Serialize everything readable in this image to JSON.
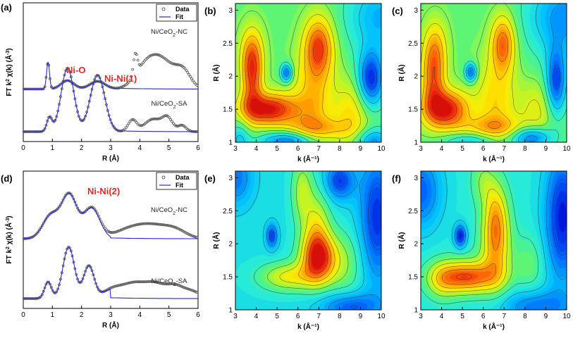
{
  "figure": {
    "panels": [
      {
        "id": "a",
        "label": "(a)",
        "type": "line"
      },
      {
        "id": "b",
        "label": "(b)",
        "type": "heatmap"
      },
      {
        "id": "c",
        "label": "(c)",
        "type": "heatmap"
      },
      {
        "id": "d",
        "label": "(d)",
        "type": "line"
      },
      {
        "id": "e",
        "label": "(e)",
        "type": "heatmap"
      },
      {
        "id": "f",
        "label": "(f)",
        "type": "heatmap"
      }
    ]
  },
  "chart_data": [
    {
      "panel": "a",
      "type": "line",
      "xlabel": "R (Å)",
      "ylabel_parts": [
        "FT k",
        "2",
        " χ(k) (Å",
        "-3",
        ")"
      ],
      "xlim": [
        0,
        6
      ],
      "xticks": [
        0,
        1,
        2,
        3,
        4,
        5,
        6
      ],
      "legend": {
        "data_label": "Data",
        "fit_label": "Fit",
        "data_color": "#555555",
        "fit_color": "#2a2ad0"
      },
      "annotations": [
        "Ni-O",
        "Ni-Ni(1)"
      ],
      "annotation_color": "#e8262a",
      "series": [
        {
          "name": "Ni/CeO2-NC",
          "label_parts": [
            "Ni/CeO",
            "2",
            "-NC"
          ],
          "offset": 0.55,
          "fit_end": 3.3,
          "peaks": [
            [
              0.35,
              0.85,
              0.05
            ],
            [
              0.11,
              1.52,
              0.22
            ],
            [
              0.1,
              2.55,
              0.26
            ],
            [
              0.27,
              3.85,
              0.07
            ],
            [
              0.26,
              4.2,
              0.38
            ],
            [
              0.33,
              4.8,
              0.42
            ],
            [
              0.2,
              5.5,
              0.26
            ]
          ]
        },
        {
          "name": "Ni/CeO2-SA",
          "label_parts": [
            "Ni/CeO",
            "2",
            "-SA"
          ],
          "offset": 0.0,
          "fit_end": 3.3,
          "peaks": [
            [
              0.18,
              0.9,
              0.09
            ],
            [
              0.82,
              1.52,
              0.22
            ],
            [
              0.73,
              2.55,
              0.25
            ],
            [
              0.15,
              3.75,
              0.15
            ],
            [
              0.16,
              4.45,
              0.28
            ],
            [
              0.17,
              4.95,
              0.18
            ],
            [
              0.08,
              5.45,
              0.14
            ]
          ]
        }
      ]
    },
    {
      "panel": "b",
      "type": "heatmap",
      "xlabel": "k (Å⁻¹)",
      "ylabel": "R (Å)",
      "xlim": [
        3,
        10
      ],
      "ylim": [
        1,
        3.1
      ],
      "xticks": [
        3,
        4,
        5,
        6,
        7,
        8,
        9,
        10
      ],
      "yticks": [
        1,
        1.5,
        2,
        2.5,
        3
      ],
      "background": 0.47,
      "lobes": [
        [
          0.53,
          4.6,
          1.5,
          0.95,
          0.17
        ],
        [
          0.35,
          3.8,
          1.95,
          0.35,
          0.35
        ],
        [
          0.25,
          3.8,
          2.35,
          0.4,
          0.3
        ],
        [
          0.42,
          7.0,
          2.45,
          0.5,
          0.32
        ],
        [
          0.25,
          6.7,
          1.6,
          0.7,
          0.5
        ],
        [
          0.2,
          6.8,
          1.2,
          1.3,
          0.12
        ],
        [
          -0.37,
          5.45,
          2.05,
          0.2,
          0.1
        ],
        [
          -0.45,
          9.5,
          1.95,
          0.45,
          0.3
        ],
        [
          -0.38,
          5.6,
          1.02,
          1.0,
          0.12
        ],
        [
          -0.3,
          9.6,
          1.02,
          0.6,
          0.14
        ],
        [
          -0.25,
          10,
          2.9,
          1.2,
          0.4
        ],
        [
          -0.18,
          3.2,
          1.05,
          0.35,
          0.2
        ],
        [
          0.2,
          8.6,
          1.45,
          0.6,
          0.35
        ]
      ]
    },
    {
      "panel": "c",
      "type": "heatmap",
      "xlabel": "k (Å⁻¹)",
      "ylabel": "R (Å)",
      "xlim": [
        3,
        10
      ],
      "ylim": [
        1,
        3.1
      ],
      "xticks": [
        3,
        4,
        5,
        6,
        7,
        8,
        9,
        10
      ],
      "yticks": [
        1,
        1.5,
        2,
        2.5,
        3
      ],
      "background": 0.47,
      "lobes": [
        [
          0.53,
          4.2,
          1.5,
          0.75,
          0.2
        ],
        [
          0.35,
          3.6,
          1.95,
          0.4,
          0.35
        ],
        [
          0.22,
          3.7,
          2.45,
          0.4,
          0.3
        ],
        [
          0.38,
          6.95,
          2.5,
          0.4,
          0.3
        ],
        [
          0.22,
          6.6,
          1.6,
          0.7,
          0.5
        ],
        [
          0.2,
          6.5,
          1.22,
          1.3,
          0.12
        ],
        [
          -0.38,
          5.4,
          2.06,
          0.2,
          0.1
        ],
        [
          -0.4,
          9.5,
          1.9,
          0.35,
          0.35
        ],
        [
          -0.38,
          8.3,
          1.08,
          0.7,
          0.12
        ],
        [
          -0.22,
          5.5,
          1.02,
          1.0,
          0.1
        ],
        [
          -0.3,
          9.9,
          2.9,
          1.3,
          0.45
        ],
        [
          0.15,
          8.6,
          1.5,
          0.6,
          0.3
        ]
      ]
    },
    {
      "panel": "d",
      "type": "line",
      "xlabel": "R (Å)",
      "ylabel_parts": [
        "FT k",
        "2",
        " χ(k) (Å",
        "-3",
        ")"
      ],
      "xlim": [
        0,
        6
      ],
      "xticks": [
        0,
        1,
        2,
        3,
        4,
        5,
        6
      ],
      "legend": {
        "data_label": "Data",
        "fit_label": "Fit",
        "data_color": "#555555",
        "fit_color": "#2a2ad0"
      },
      "annotations": [
        "Ni-Ni(2)"
      ],
      "annotation_color": "#e8262a",
      "series": [
        {
          "name": "Ni/CeO2-NC",
          "label_parts": [
            "Ni/CeO",
            "2",
            "-NC"
          ],
          "offset": 0.72,
          "fit_end": 3.0,
          "peaks": [
            [
              0.28,
              0.95,
              0.28
            ],
            [
              0.52,
              1.58,
              0.26
            ],
            [
              0.37,
              2.35,
              0.28
            ],
            [
              0.1,
              3.6,
              0.5
            ],
            [
              0.14,
              4.4,
              0.5
            ],
            [
              0.1,
              5.2,
              0.4
            ]
          ]
        },
        {
          "name": "Ni/CeO2-SA",
          "label_parts": [
            "Ni/CeO",
            "2",
            "-SA"
          ],
          "offset": 0.0,
          "fit_end": 3.0,
          "peaks": [
            [
              0.2,
              0.85,
              0.12
            ],
            [
              0.62,
              1.56,
              0.2
            ],
            [
              0.39,
              2.25,
              0.18
            ],
            [
              0.12,
              3.1,
              0.35
            ],
            [
              0.16,
              3.8,
              0.35
            ],
            [
              0.17,
              4.5,
              0.35
            ],
            [
              0.14,
              5.2,
              0.3
            ],
            [
              0.08,
              5.8,
              0.3
            ]
          ]
        }
      ]
    },
    {
      "panel": "e",
      "type": "heatmap",
      "xlabel": "k (Å⁻¹)",
      "ylabel": "R (Å)",
      "xlim": [
        3,
        10
      ],
      "ylim": [
        1,
        3.1
      ],
      "xticks": [
        3,
        4,
        5,
        6,
        7,
        8,
        9,
        10
      ],
      "yticks": [
        1,
        1.5,
        2,
        2.5,
        3
      ],
      "background": 0.33,
      "lobes": [
        [
          0.55,
          7.0,
          1.78,
          0.6,
          0.25
        ],
        [
          0.3,
          5.6,
          1.5,
          1.0,
          0.15
        ],
        [
          0.3,
          6.9,
          2.2,
          0.45,
          0.4
        ],
        [
          0.22,
          6.2,
          2.8,
          0.35,
          0.35
        ],
        [
          0.15,
          8.3,
          1.7,
          0.6,
          0.35
        ],
        [
          -0.28,
          4.75,
          2.12,
          0.2,
          0.13
        ],
        [
          -0.3,
          9.8,
          2.4,
          0.6,
          0.7
        ],
        [
          -0.28,
          8.0,
          2.95,
          0.5,
          0.2
        ],
        [
          -0.25,
          8.5,
          1.05,
          1.0,
          0.15
        ],
        [
          -0.2,
          3.0,
          3.0,
          0.6,
          0.3
        ]
      ]
    },
    {
      "panel": "f",
      "type": "heatmap",
      "xlabel": "k (Å⁻¹)",
      "ylabel": "R (Å)",
      "xlim": [
        3,
        10
      ],
      "ylim": [
        1,
        3.1
      ],
      "xticks": [
        3,
        4,
        5,
        6,
        7,
        8,
        9,
        10
      ],
      "yticks": [
        1,
        1.5,
        2,
        2.5,
        3
      ],
      "background": 0.35,
      "lobes": [
        [
          0.55,
          5.2,
          1.5,
          1.0,
          0.17
        ],
        [
          0.35,
          6.6,
          1.9,
          0.5,
          0.4
        ],
        [
          0.3,
          6.6,
          2.45,
          0.4,
          0.35
        ],
        [
          0.15,
          6.0,
          2.95,
          0.4,
          0.25
        ],
        [
          0.18,
          4.0,
          1.45,
          0.5,
          0.2
        ],
        [
          -0.35,
          4.9,
          2.12,
          0.2,
          0.12
        ],
        [
          -0.35,
          9.8,
          2.4,
          0.6,
          0.7
        ],
        [
          -0.25,
          3.0,
          2.8,
          0.7,
          0.4
        ],
        [
          -0.22,
          8.5,
          1.05,
          1.2,
          0.18
        ],
        [
          0.12,
          8.2,
          1.7,
          0.5,
          0.3
        ]
      ]
    }
  ]
}
